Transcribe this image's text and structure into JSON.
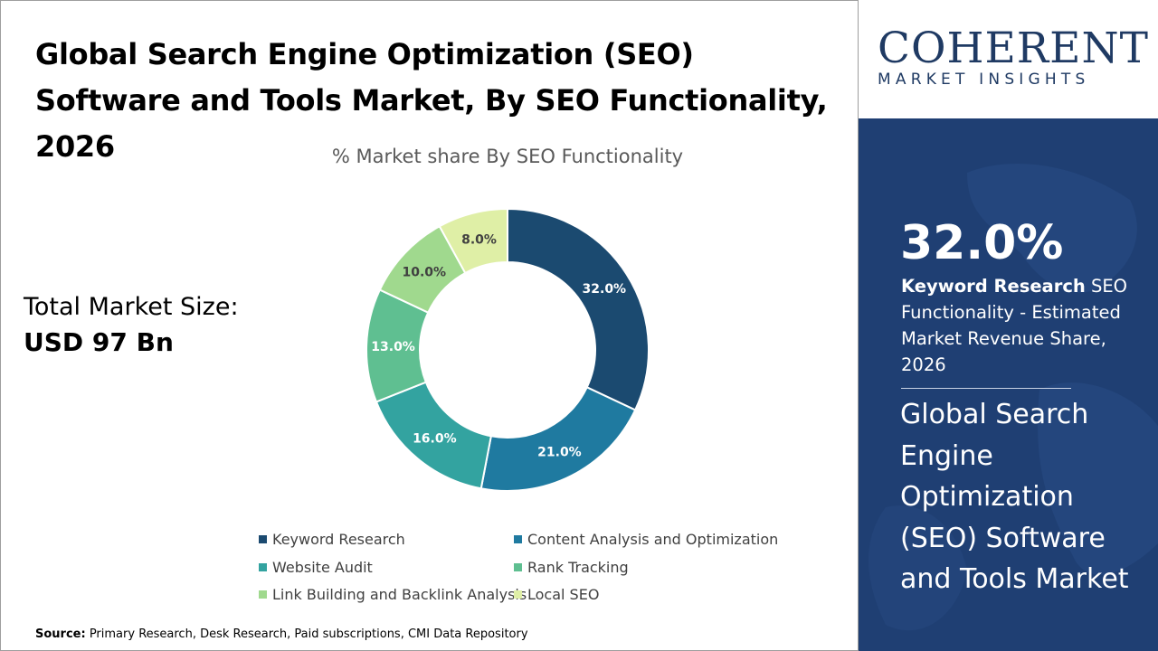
{
  "title": "Global Search Engine Optimization (SEO) Software and Tools Market, By SEO Functionality, 2026",
  "subtitle": "% Market share By SEO Functionality",
  "market": {
    "label": "Total Market Size:",
    "value": "USD 97 Bn"
  },
  "source": {
    "label": "Source:",
    "text": " Primary Research, Desk Research, Paid subscriptions, CMI Data Repository"
  },
  "logo": {
    "main": "COHERENT",
    "sub": "MARKET INSIGHTS"
  },
  "sidebar": {
    "big_value": "32.0%",
    "highlight_bold": "Keyword Research",
    "highlight_rest": " SEO Functionality - Estimated Market Revenue Share, 2026",
    "panel_title": "Global Search Engine Optimization (SEO) Software and Tools Market"
  },
  "chart_data": {
    "type": "pie",
    "donut": true,
    "title": "% Market share By SEO Functionality",
    "categories": [
      "Keyword Research",
      "Content Analysis and Optimization",
      "Website Audit",
      "Rank Tracking",
      "Link Building and Backlink Analysis",
      "Local SEO"
    ],
    "values": [
      32.0,
      21.0,
      16.0,
      13.0,
      10.0,
      8.0
    ],
    "labels": [
      "32.0%",
      "21.0%",
      "16.0%",
      "13.0%",
      "10.0%",
      "8.0%"
    ],
    "colors": [
      "#1b4a70",
      "#1f7aa0",
      "#33a3a0",
      "#5fbf91",
      "#a0d98e",
      "#dfefa6"
    ],
    "label_colors": [
      "#ffffff",
      "#ffffff",
      "#ffffff",
      "#ffffff",
      "#404040",
      "#404040"
    ],
    "legend_position": "bottom"
  }
}
